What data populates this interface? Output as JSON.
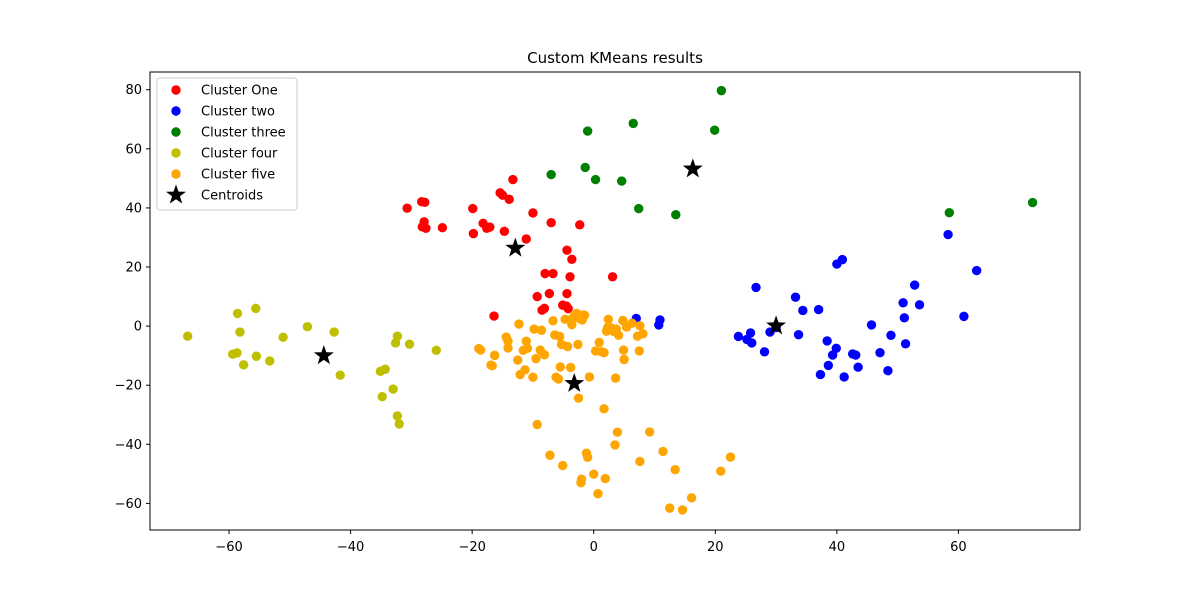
{
  "chart_data": {
    "type": "scatter",
    "title": "Custom KMeans results",
    "xlabel": "",
    "ylabel": "",
    "xlim": [
      -73,
      80
    ],
    "ylim": [
      -69,
      86
    ],
    "xticks": [
      -60,
      -40,
      -20,
      0,
      20,
      40,
      60
    ],
    "yticks": [
      -60,
      -40,
      -20,
      0,
      20,
      40,
      60,
      80
    ],
    "grid": false,
    "legend_position": "top-left",
    "series": [
      {
        "name": "Cluster One",
        "color": "#ff0000",
        "marker": "circle",
        "points": [
          [
            -30.7,
            39.9
          ],
          [
            -28.3,
            42.1
          ],
          [
            -27.8,
            41.9
          ],
          [
            -28.2,
            33.6
          ],
          [
            -27.9,
            35.3
          ],
          [
            -27.6,
            33.1
          ],
          [
            -24.9,
            33.3
          ],
          [
            -19.9,
            39.8
          ],
          [
            -19.8,
            31.3
          ],
          [
            -18.2,
            34.8
          ],
          [
            -17.6,
            33.1
          ],
          [
            -17.1,
            33.5
          ],
          [
            -15.4,
            45.1
          ],
          [
            -15.0,
            44.3
          ],
          [
            -14.7,
            32.1
          ],
          [
            -13.9,
            42.9
          ],
          [
            -13.3,
            49.6
          ],
          [
            -11.1,
            29.5
          ],
          [
            -10.0,
            38.3
          ],
          [
            -7.0,
            35.0
          ],
          [
            -2.3,
            34.3
          ],
          [
            -4.4,
            25.7
          ],
          [
            -3.6,
            22.6
          ],
          [
            -8.0,
            17.8
          ],
          [
            -6.7,
            17.8
          ],
          [
            -3.9,
            16.7
          ],
          [
            3.1,
            16.7
          ],
          [
            -7.3,
            11.0
          ],
          [
            -9.3,
            10.0
          ],
          [
            -4.4,
            11.0
          ],
          [
            -8.5,
            5.4
          ],
          [
            -8.1,
            6.0
          ],
          [
            -5.1,
            7.1
          ],
          [
            -4.5,
            6.8
          ],
          [
            -4.2,
            5.9
          ],
          [
            -16.4,
            3.4
          ]
        ]
      },
      {
        "name": "Cluster two",
        "color": "#0000ff",
        "marker": "circle",
        "points": [
          [
            7.0,
            2.6
          ],
          [
            10.7,
            0.4
          ],
          [
            10.9,
            2.1
          ],
          [
            23.8,
            -3.5
          ],
          [
            25.2,
            -4.5
          ],
          [
            25.8,
            -2.3
          ],
          [
            26.0,
            -5.7
          ],
          [
            26.7,
            13.1
          ],
          [
            28.1,
            -8.7
          ],
          [
            29.0,
            -2.0
          ],
          [
            30.0,
            -0.5
          ],
          [
            33.2,
            9.8
          ],
          [
            33.7,
            -2.9
          ],
          [
            34.4,
            5.3
          ],
          [
            37.0,
            5.6
          ],
          [
            37.3,
            -16.4
          ],
          [
            38.4,
            -5.0
          ],
          [
            38.6,
            -13.3
          ],
          [
            39.3,
            -9.8
          ],
          [
            39.9,
            -7.5
          ],
          [
            40.0,
            21.0
          ],
          [
            40.9,
            22.5
          ],
          [
            41.2,
            -17.2
          ],
          [
            42.6,
            -9.4
          ],
          [
            43.1,
            -9.8
          ],
          [
            43.5,
            -13.9
          ],
          [
            45.7,
            0.4
          ],
          [
            47.1,
            -9.0
          ],
          [
            48.4,
            -15.1
          ],
          [
            48.9,
            -3.1
          ],
          [
            50.9,
            7.9
          ],
          [
            51.1,
            2.8
          ],
          [
            51.3,
            -6.0
          ],
          [
            52.8,
            13.9
          ],
          [
            53.6,
            7.2
          ],
          [
            58.3,
            31.0
          ],
          [
            60.9,
            3.3
          ],
          [
            63.0,
            18.8
          ]
        ]
      },
      {
        "name": "Cluster three",
        "color": "#008000",
        "marker": "circle",
        "points": [
          [
            -7.0,
            51.3
          ],
          [
            -1.4,
            53.7
          ],
          [
            -1.0,
            66.0
          ],
          [
            0.3,
            49.6
          ],
          [
            4.6,
            49.1
          ],
          [
            6.5,
            68.6
          ],
          [
            7.4,
            39.8
          ],
          [
            13.5,
            37.7
          ],
          [
            19.9,
            66.3
          ],
          [
            21.0,
            79.7
          ],
          [
            58.5,
            38.4
          ],
          [
            72.2,
            41.8
          ]
        ]
      },
      {
        "name": "Cluster four",
        "color": "#bfbf00",
        "marker": "circle",
        "points": [
          [
            -66.8,
            -3.4
          ],
          [
            -59.4,
            -9.5
          ],
          [
            -58.7,
            -9.1
          ],
          [
            -58.6,
            4.3
          ],
          [
            -58.2,
            -2.0
          ],
          [
            -57.6,
            -13.1
          ],
          [
            -55.6,
            6.0
          ],
          [
            -55.5,
            -10.2
          ],
          [
            -53.3,
            -11.8
          ],
          [
            -51.1,
            -3.8
          ],
          [
            -47.1,
            -0.2
          ],
          [
            -42.7,
            -2.0
          ],
          [
            -41.7,
            -16.6
          ],
          [
            -35.1,
            -15.3
          ],
          [
            -34.8,
            -23.9
          ],
          [
            -34.3,
            -14.6
          ],
          [
            -33.0,
            -21.3
          ],
          [
            -32.6,
            -5.7
          ],
          [
            -32.3,
            -3.4
          ],
          [
            -32.3,
            -30.4
          ],
          [
            -32.0,
            -33.1
          ],
          [
            -30.3,
            -6.1
          ],
          [
            -25.9,
            -8.2
          ]
        ]
      },
      {
        "name": "Cluster five",
        "color": "#ffa500",
        "marker": "circle",
        "points": [
          [
            -18.9,
            -7.6
          ],
          [
            -18.6,
            -8.1
          ],
          [
            -16.9,
            -13.2
          ],
          [
            -16.7,
            -13.4
          ],
          [
            -16.3,
            -9.9
          ],
          [
            -14.4,
            -3.7
          ],
          [
            -14.1,
            -5.1
          ],
          [
            -14.1,
            -7.4
          ],
          [
            -12.5,
            -11.5
          ],
          [
            -12.3,
            0.7
          ],
          [
            -12.1,
            -16.4
          ],
          [
            -11.6,
            -8.2
          ],
          [
            -11.3,
            -14.8
          ],
          [
            -11.1,
            -5.1
          ],
          [
            -10.9,
            -7.5
          ],
          [
            -10.0,
            -17.3
          ],
          [
            -9.8,
            -1.0
          ],
          [
            -9.5,
            -11.0
          ],
          [
            -9.3,
            -33.3
          ],
          [
            -8.8,
            -8.1
          ],
          [
            -8.6,
            -1.4
          ],
          [
            -8.1,
            -9.7
          ],
          [
            -7.2,
            -43.7
          ],
          [
            -6.7,
            1.8
          ],
          [
            -6.4,
            -3.0
          ],
          [
            -6.2,
            -17.3
          ],
          [
            -5.8,
            -17.9
          ],
          [
            -5.6,
            -3.5
          ],
          [
            -5.5,
            -13.8
          ],
          [
            -5.3,
            -6.2
          ],
          [
            -5.1,
            -47.2
          ],
          [
            -4.7,
            2.3
          ],
          [
            -4.3,
            -6.9
          ],
          [
            -3.8,
            -14.0
          ],
          [
            -3.6,
            0.5
          ],
          [
            -3.4,
            2.8
          ],
          [
            -3.2,
            3.4
          ],
          [
            -2.8,
            4.3
          ],
          [
            -2.6,
            -6.2
          ],
          [
            -2.5,
            -24.4
          ],
          [
            -2.3,
            2.5
          ],
          [
            -2.1,
            -53.0
          ],
          [
            -2.0,
            -51.8
          ],
          [
            -1.9,
            2.1
          ],
          [
            -1.7,
            3.8
          ],
          [
            -1.5,
            3.7
          ],
          [
            -1.2,
            -43.0
          ],
          [
            -1.0,
            -44.4
          ],
          [
            -0.7,
            -17.2
          ],
          [
            0.0,
            -50.1
          ],
          [
            0.3,
            -8.4
          ],
          [
            0.7,
            -56.7
          ],
          [
            0.9,
            -5.5
          ],
          [
            1.3,
            -8.7
          ],
          [
            1.7,
            -9.0
          ],
          [
            1.7,
            -28.0
          ],
          [
            1.9,
            -51.6
          ],
          [
            2.1,
            -1.7
          ],
          [
            2.3,
            -0.5
          ],
          [
            2.4,
            2.3
          ],
          [
            2.9,
            -0.6
          ],
          [
            3.3,
            -1.8
          ],
          [
            3.5,
            -40.2
          ],
          [
            3.6,
            -17.6
          ],
          [
            3.7,
            -1.0
          ],
          [
            3.9,
            -35.9
          ],
          [
            4.1,
            -3.1
          ],
          [
            4.8,
            1.9
          ],
          [
            4.9,
            -8.1
          ],
          [
            5.0,
            -11.3
          ],
          [
            5.4,
            -0.3
          ],
          [
            6.3,
            1.0
          ],
          [
            7.2,
            -3.4
          ],
          [
            7.5,
            -8.4
          ],
          [
            7.6,
            -45.8
          ],
          [
            7.6,
            0.1
          ],
          [
            8.1,
            -2.6
          ],
          [
            9.2,
            -35.8
          ],
          [
            11.4,
            -42.4
          ],
          [
            12.5,
            -61.6
          ],
          [
            13.4,
            -48.6
          ],
          [
            14.6,
            -62.2
          ],
          [
            16.1,
            -58.1
          ],
          [
            20.9,
            -49.1
          ],
          [
            22.5,
            -44.3
          ]
        ]
      },
      {
        "name": "Centroids",
        "color": "#000000",
        "marker": "star",
        "points": [
          [
            -12.9,
            26.4
          ],
          [
            30.0,
            0.1
          ],
          [
            16.3,
            53.2
          ],
          [
            -44.4,
            -10.0
          ],
          [
            -3.2,
            -19.4
          ]
        ]
      }
    ]
  }
}
